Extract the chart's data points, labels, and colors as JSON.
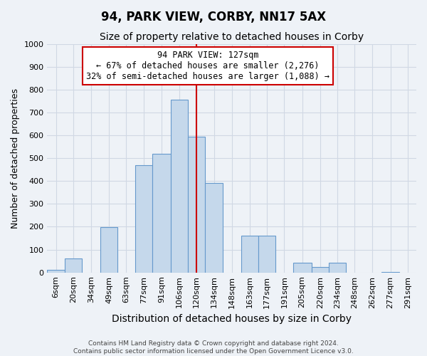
{
  "title": "94, PARK VIEW, CORBY, NN17 5AX",
  "subtitle": "Size of property relative to detached houses in Corby",
  "xlabel": "Distribution of detached houses by size in Corby",
  "ylabel": "Number of detached properties",
  "bin_labels": [
    "6sqm",
    "20sqm",
    "34sqm",
    "49sqm",
    "63sqm",
    "77sqm",
    "91sqm",
    "106sqm",
    "120sqm",
    "134sqm",
    "148sqm",
    "163sqm",
    "177sqm",
    "191sqm",
    "205sqm",
    "220sqm",
    "234sqm",
    "248sqm",
    "262sqm",
    "277sqm",
    "291sqm"
  ],
  "bin_left_edges": [
    6,
    20,
    34,
    49,
    63,
    77,
    91,
    106,
    120,
    134,
    148,
    163,
    177,
    191,
    205,
    220,
    234,
    248,
    262,
    277,
    291
  ],
  "bin_widths": [
    14,
    14,
    15,
    14,
    14,
    14,
    15,
    14,
    14,
    14,
    15,
    14,
    14,
    14,
    15,
    14,
    14,
    14,
    15,
    14,
    14
  ],
  "bar_heights": [
    13,
    62,
    0,
    197,
    0,
    470,
    520,
    755,
    595,
    390,
    0,
    160,
    160,
    0,
    42,
    25,
    42,
    0,
    0,
    3,
    0
  ],
  "bar_color": "#c5d8eb",
  "bar_edgecolor": "#6699cc",
  "property_line_x": 127,
  "property_line_color": "#cc0000",
  "annotation_title": "94 PARK VIEW: 127sqm",
  "annotation_line1": "← 67% of detached houses are smaller (2,276)",
  "annotation_line2": "32% of semi-detached houses are larger (1,088) →",
  "annotation_box_edgecolor": "#cc0000",
  "annotation_box_facecolor": "#ffffff",
  "ylim": [
    0,
    1000
  ],
  "xlim_left": 6,
  "xlim_right": 305,
  "footer1": "Contains HM Land Registry data © Crown copyright and database right 2024.",
  "footer2": "Contains public sector information licensed under the Open Government Licence v3.0.",
  "background_color": "#eef2f7",
  "grid_color": "#d0d8e4",
  "title_fontsize": 12,
  "subtitle_fontsize": 10,
  "xlabel_fontsize": 10,
  "ylabel_fontsize": 9,
  "tick_fontsize": 8,
  "annotation_fontsize": 8.5,
  "footer_fontsize": 6.5
}
